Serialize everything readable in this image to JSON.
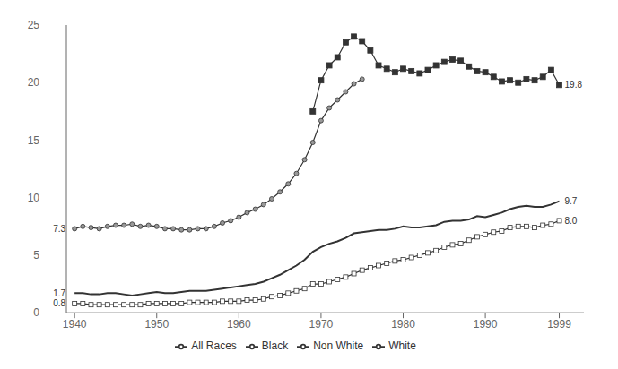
{
  "chart_data": {
    "type": "line",
    "x": [
      1940,
      1941,
      1942,
      1943,
      1944,
      1945,
      1946,
      1947,
      1948,
      1949,
      1950,
      1951,
      1952,
      1953,
      1954,
      1955,
      1956,
      1957,
      1958,
      1959,
      1960,
      1961,
      1962,
      1963,
      1964,
      1965,
      1966,
      1967,
      1968,
      1969,
      1970,
      1971,
      1972,
      1973,
      1974,
      1975,
      1976,
      1977,
      1978,
      1979,
      1980,
      1981,
      1982,
      1983,
      1984,
      1985,
      1986,
      1987,
      1988,
      1989,
      1990,
      1991,
      1992,
      1993,
      1994,
      1995,
      1996,
      1997,
      1998,
      1999
    ],
    "series": [
      {
        "name": "All Races",
        "color": "#333333",
        "marker": "none",
        "values": [
          1.7,
          1.7,
          1.6,
          1.6,
          1.7,
          1.7,
          1.6,
          1.5,
          1.6,
          1.7,
          1.8,
          1.7,
          1.7,
          1.8,
          1.9,
          1.9,
          1.9,
          2.0,
          2.1,
          2.2,
          2.3,
          2.4,
          2.5,
          2.7,
          3.0,
          3.3,
          3.7,
          4.1,
          4.6,
          5.3,
          5.7,
          6.0,
          6.2,
          6.5,
          6.9,
          7.0,
          7.1,
          7.2,
          7.2,
          7.3,
          7.5,
          7.4,
          7.4,
          7.5,
          7.6,
          7.9,
          8.0,
          8.0,
          8.1,
          8.4,
          8.3,
          8.5,
          8.7,
          9.0,
          9.2,
          9.3,
          9.2,
          9.2,
          9.4,
          9.7
        ]
      },
      {
        "name": "White",
        "color": "#333333",
        "marker": "open_square",
        "values": [
          0.8,
          0.8,
          0.7,
          0.7,
          0.7,
          0.7,
          0.7,
          0.7,
          0.7,
          0.8,
          0.8,
          0.8,
          0.8,
          0.8,
          0.9,
          0.9,
          0.9,
          0.9,
          1.0,
          1.0,
          1.0,
          1.1,
          1.1,
          1.2,
          1.4,
          1.5,
          1.7,
          1.9,
          2.1,
          2.5,
          2.5,
          2.7,
          2.9,
          3.1,
          3.4,
          3.7,
          3.9,
          4.1,
          4.3,
          4.5,
          4.6,
          4.8,
          5.0,
          5.2,
          5.4,
          5.7,
          5.9,
          6.0,
          6.3,
          6.6,
          6.8,
          7.0,
          7.1,
          7.4,
          7.5,
          7.5,
          7.4,
          7.6,
          7.7,
          8.0
        ]
      },
      {
        "name": "Non White",
        "color": "#333333",
        "marker": "circle",
        "values": [
          7.3,
          7.5,
          7.4,
          7.3,
          7.5,
          7.6,
          7.6,
          7.7,
          7.5,
          7.6,
          7.5,
          7.3,
          7.3,
          7.2,
          7.2,
          7.3,
          7.3,
          7.5,
          7.8,
          8.0,
          8.3,
          8.7,
          9.0,
          9.4,
          9.9,
          10.5,
          11.2,
          12.1,
          13.3,
          14.8,
          16.7,
          17.8,
          18.5,
          19.2,
          19.9,
          20.3,
          null,
          null,
          null,
          null,
          null,
          null,
          null,
          null,
          null,
          null,
          null,
          null,
          null,
          null,
          null,
          null,
          null,
          null,
          null,
          null,
          null,
          null,
          null,
          null
        ]
      },
      {
        "name": "Black",
        "color": "#333333",
        "marker": "square",
        "values": [
          null,
          null,
          null,
          null,
          null,
          null,
          null,
          null,
          null,
          null,
          null,
          null,
          null,
          null,
          null,
          null,
          null,
          null,
          null,
          null,
          null,
          null,
          null,
          null,
          null,
          null,
          null,
          null,
          null,
          17.5,
          20.2,
          21.5,
          22.2,
          23.5,
          24.0,
          23.6,
          22.8,
          21.5,
          21.2,
          20.9,
          21.2,
          21.0,
          20.8,
          21.1,
          21.5,
          21.8,
          22.0,
          21.9,
          21.4,
          21.0,
          20.9,
          20.5,
          20.1,
          20.2,
          20.0,
          20.3,
          20.2,
          20.5,
          21.1,
          19.8
        ]
      }
    ],
    "xlim": [
      1939,
      2002
    ],
    "xticks": [
      1940,
      1950,
      1960,
      1970,
      1980,
      1990,
      1999
    ],
    "ylim": [
      0,
      25
    ],
    "yticks": [
      0,
      5,
      10,
      15,
      20,
      25
    ],
    "grid": false,
    "legend": "bottom",
    "annotations": [
      {
        "text": "19.8",
        "x": 1999,
        "y": 19.8
      },
      {
        "text": "9.7",
        "x": 1999,
        "y": 9.7
      },
      {
        "text": "8.0",
        "x": 1999,
        "y": 8.0
      },
      {
        "text": "7.3",
        "x": 1940,
        "y": 7.3
      },
      {
        "text": "1.7",
        "x": 1940,
        "y": 1.7
      },
      {
        "text": "0.8",
        "x": 1940,
        "y": 0.8
      }
    ]
  }
}
